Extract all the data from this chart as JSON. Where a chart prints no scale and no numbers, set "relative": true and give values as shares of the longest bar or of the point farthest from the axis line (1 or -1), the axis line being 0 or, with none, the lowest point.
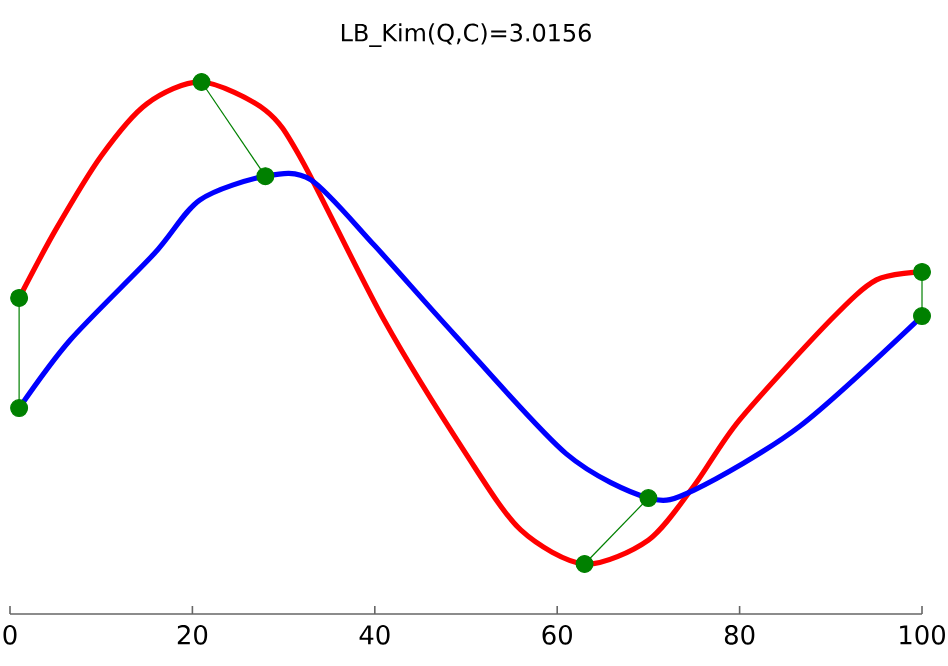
{
  "chart_data": {
    "type": "line",
    "title": "LB_Kim(Q,C)=3.0156",
    "relative": true,
    "xlim": [
      0,
      100
    ],
    "xticks": [
      0,
      20,
      40,
      60,
      80,
      100
    ],
    "tick_labels": "x",
    "grid": false,
    "series": [
      {
        "color": "#ff0000",
        "x": [
          1,
          5,
          10,
          15,
          21,
          28,
          32,
          41,
          50,
          56,
          63,
          70,
          75,
          80,
          90,
          95,
          100
        ],
        "values": [
          0.594,
          0.722,
          0.861,
          0.959,
          1.0,
          0.947,
          0.853,
          0.553,
          0.301,
          0.158,
          0.094,
          0.139,
          0.241,
          0.365,
          0.553,
          0.628,
          0.643
        ]
      },
      {
        "color": "#0000ff",
        "x": [
          1,
          6.6,
          15.8,
          20.8,
          28,
          33,
          40,
          48.7,
          61,
          70,
          75,
          86.6,
          100
        ],
        "values": [
          0.387,
          0.515,
          0.677,
          0.778,
          0.823,
          0.816,
          0.692,
          0.526,
          0.301,
          0.218,
          0.233,
          0.353,
          0.56
        ]
      },
      {
        "color": "#008000",
        "marker": "circle",
        "x": [
          1,
          1
        ],
        "values": [
          0.594,
          0.387
        ]
      },
      {
        "color": "#008000",
        "marker": "circle",
        "x": [
          21,
          28
        ],
        "values": [
          1.0,
          0.823
        ]
      },
      {
        "color": "#008000",
        "marker": "circle",
        "x": [
          63,
          70
        ],
        "values": [
          0.094,
          0.218
        ]
      },
      {
        "color": "#008000",
        "marker": "circle",
        "x": [
          100,
          100
        ],
        "values": [
          0.643,
          0.56
        ]
      }
    ]
  }
}
